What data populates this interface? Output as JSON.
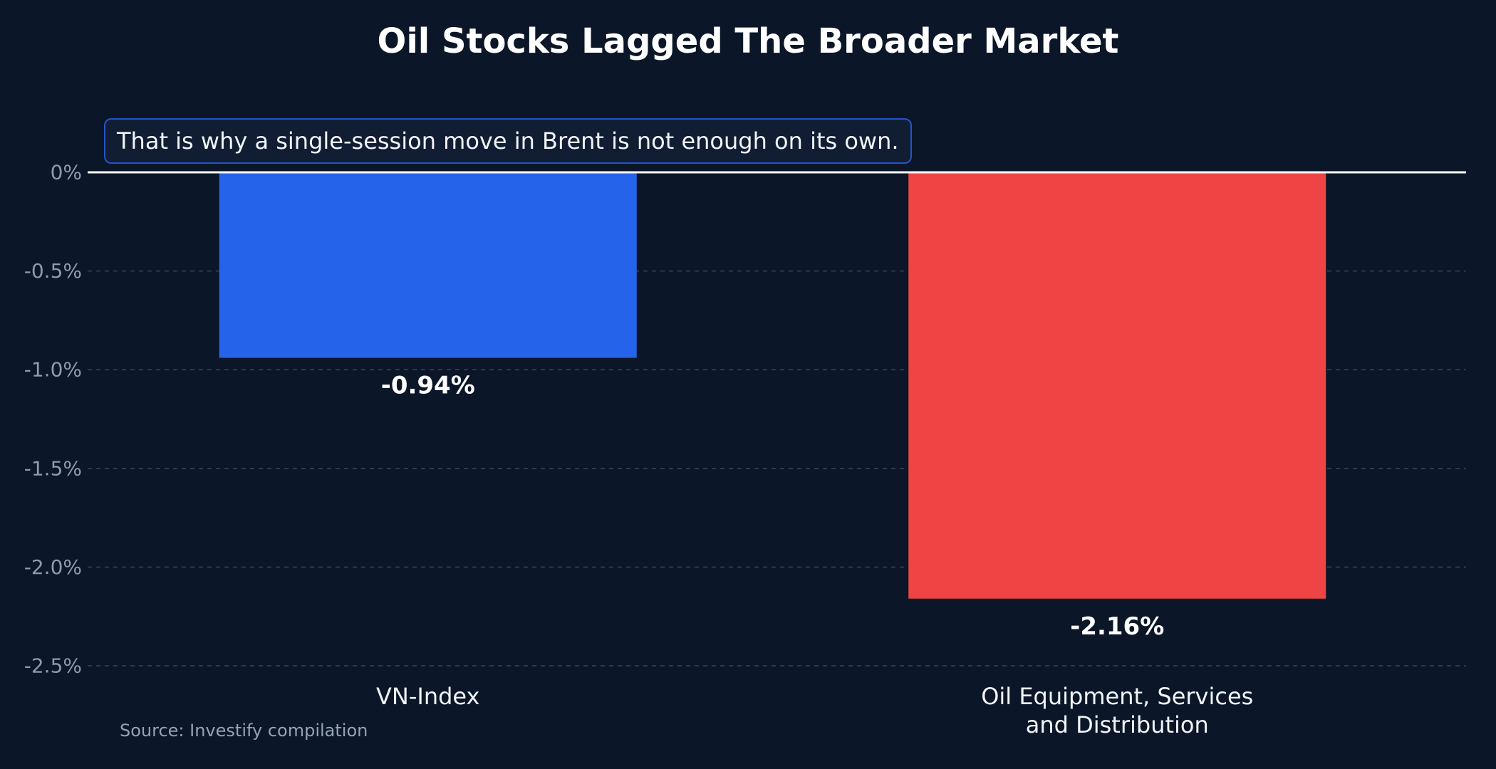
{
  "chart_data": {
    "type": "bar",
    "title": "Oil Stocks Lagged The Broader Market",
    "annotation": "That is why a single-session move in Brent is not enough on its own.",
    "source": "Source: Investify compilation",
    "categories": [
      [
        "VN-Index"
      ],
      [
        "Oil Equipment, Services",
        "and Distribution"
      ]
    ],
    "values": [
      -0.94,
      -2.16
    ],
    "value_labels": [
      "-0.94%",
      "-2.16%"
    ],
    "bar_colors": [
      "#2563eb",
      "#ef4444"
    ],
    "xlabel": "",
    "ylabel": "",
    "ylim": [
      -2.5,
      0
    ],
    "yticks": [
      0,
      -0.5,
      -1.0,
      -1.5,
      -2.0,
      -2.5
    ],
    "ytick_labels": [
      "0%",
      "-0.5%",
      "-1.0%",
      "-1.5%",
      "-2.0%",
      "-2.5%"
    ],
    "grid": true,
    "legend": "none"
  },
  "colors": {
    "background": "#0b1628",
    "zero_line": "#ffffff",
    "grid": "#3a4658",
    "annotation_border": "#2554c7"
  }
}
